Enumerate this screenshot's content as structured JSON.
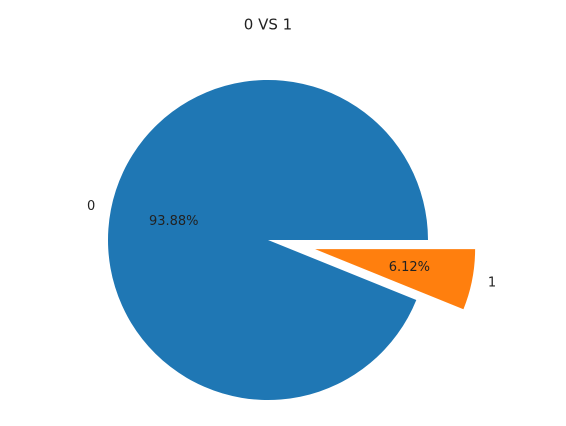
{
  "chart_data": {
    "type": "pie",
    "title": "0 VS 1",
    "categories": [
      "0",
      "1"
    ],
    "values": [
      93.88,
      6.12
    ],
    "value_labels": [
      "93.88%",
      "6.12%"
    ],
    "colors": [
      "#1f77b4",
      "#ff7f0e"
    ],
    "explode": [
      0,
      0.3
    ]
  }
}
